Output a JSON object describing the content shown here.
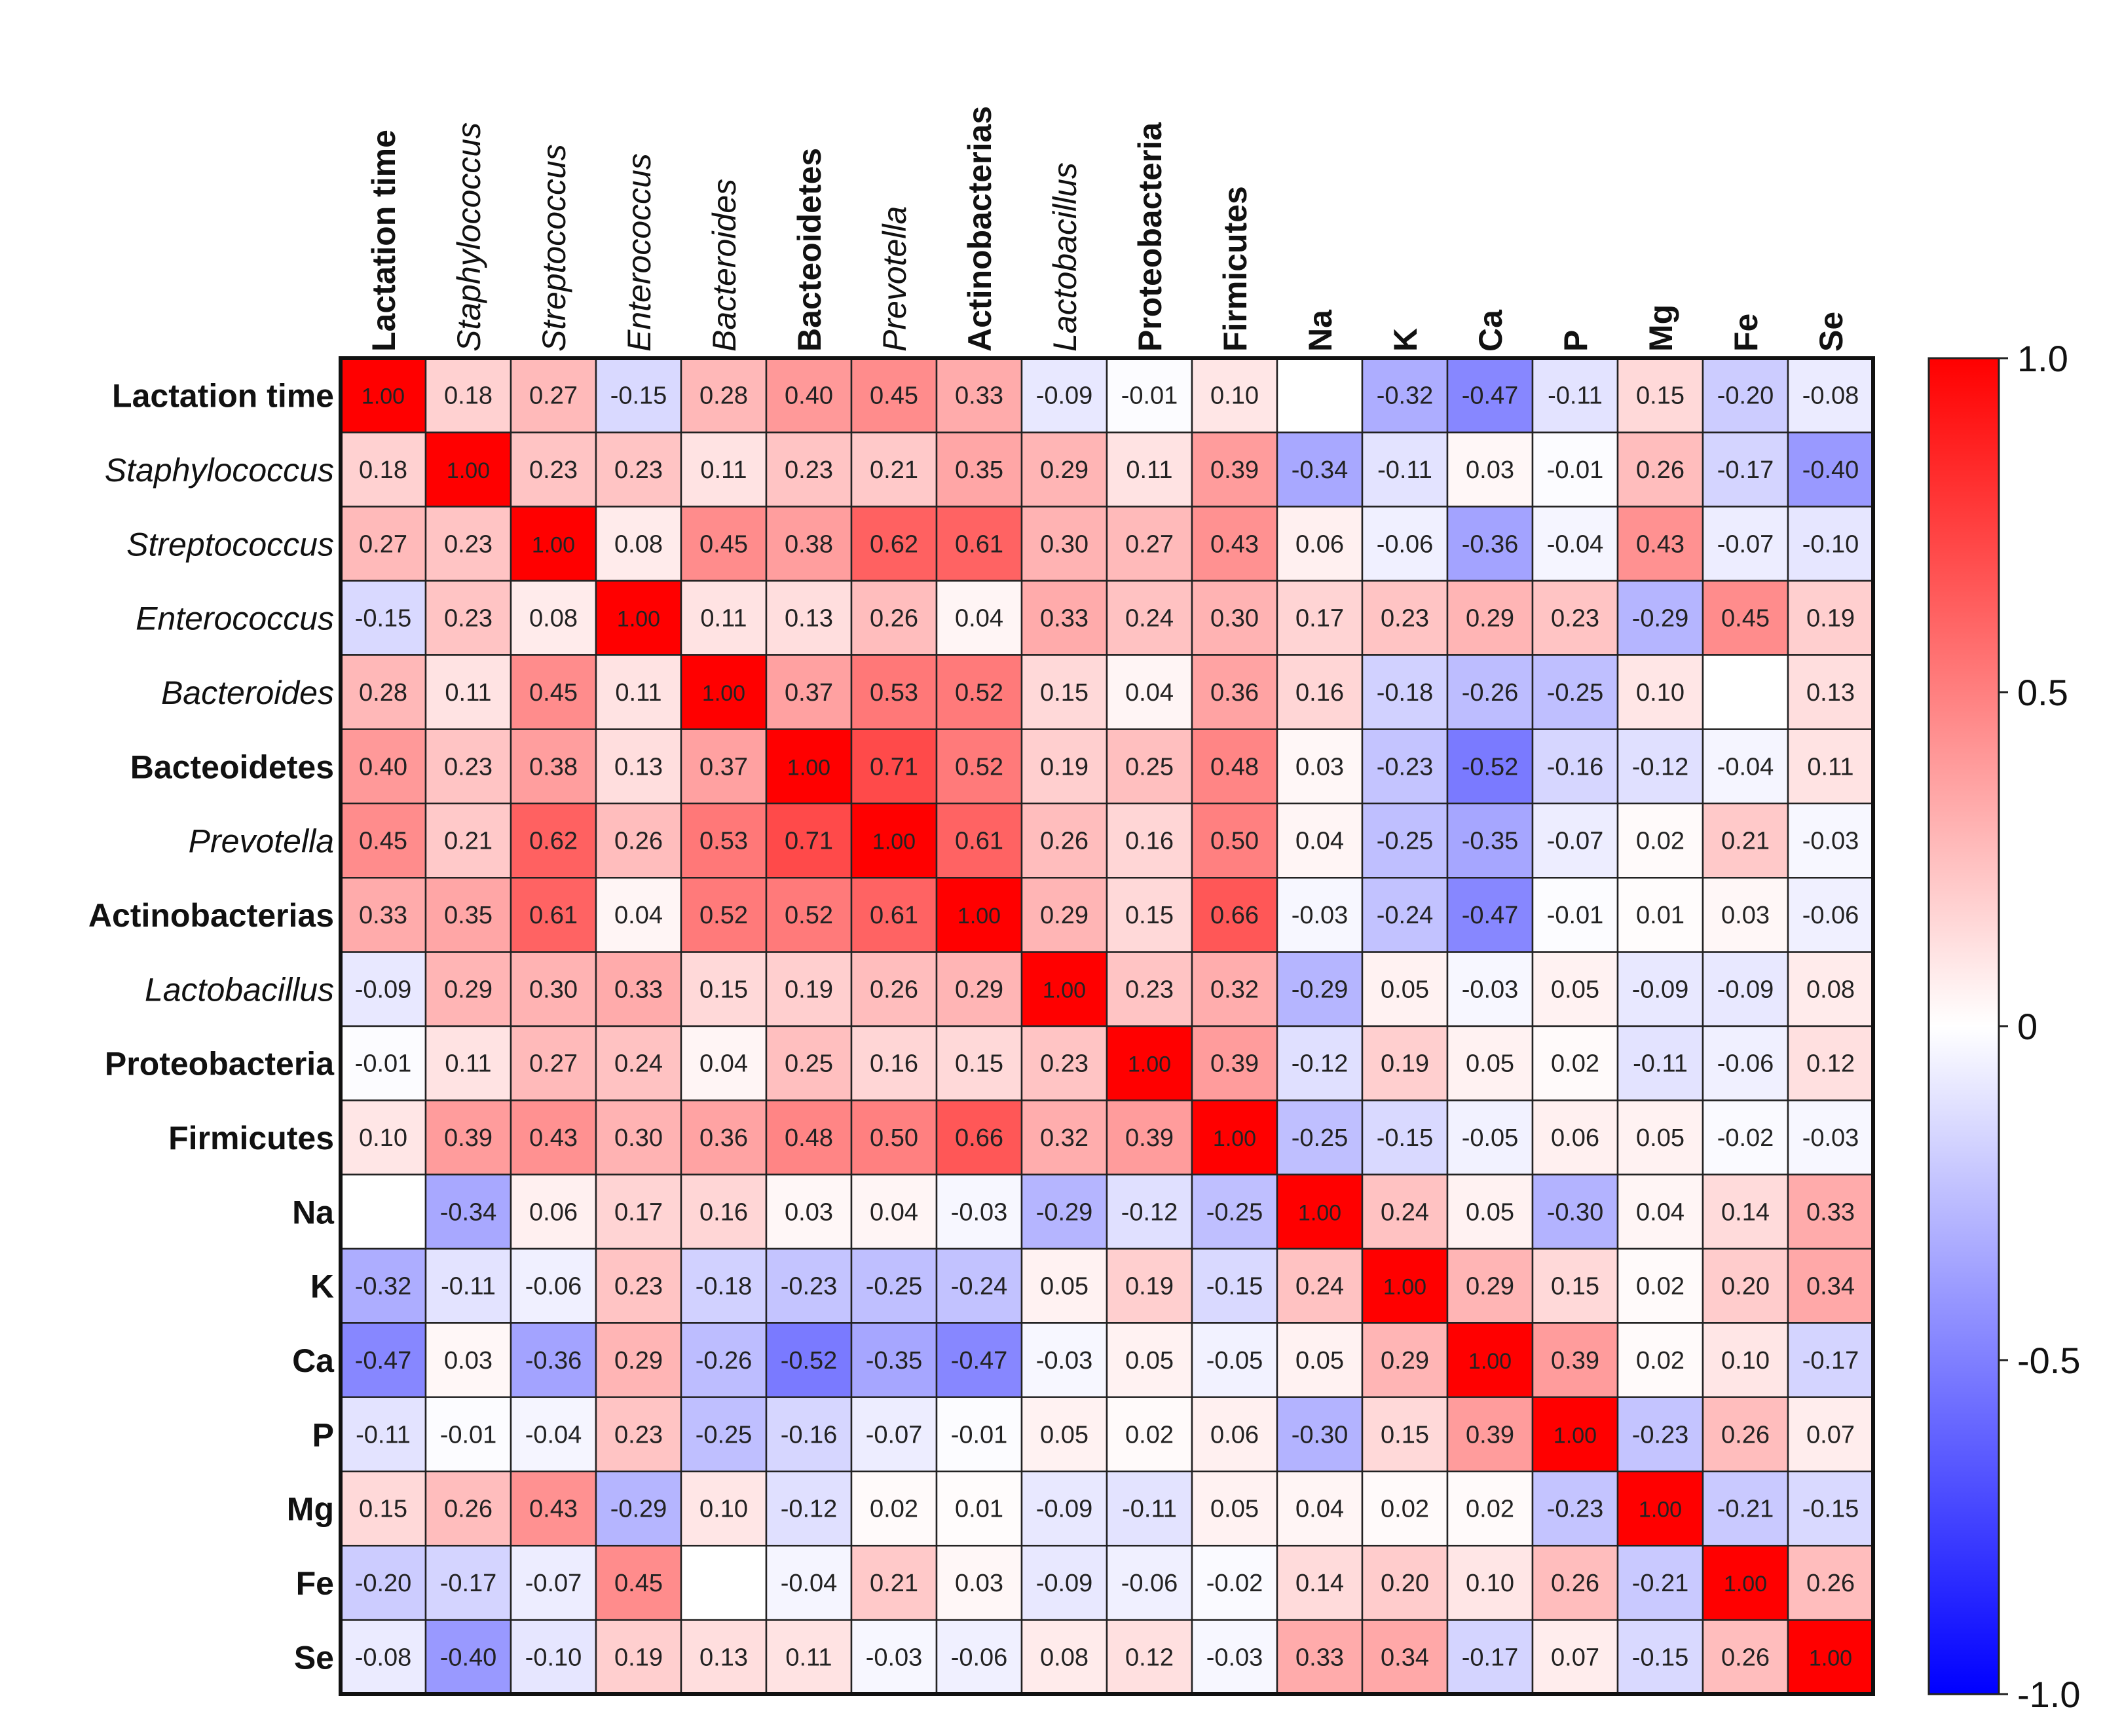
{
  "chart_data": {
    "type": "heatmap",
    "title": "",
    "labels": [
      {
        "text": "Lactation time",
        "style": "bold"
      },
      {
        "text": "Staphylococcus",
        "style": "italic"
      },
      {
        "text": "Streptococcus",
        "style": "italic"
      },
      {
        "text": "Enterococcus",
        "style": "italic"
      },
      {
        "text": "Bacteroides",
        "style": "italic"
      },
      {
        "text": "Bacteoidetes",
        "style": "bold"
      },
      {
        "text": "Prevotella",
        "style": "italic"
      },
      {
        "text": "Actinobacterias",
        "style": "bold"
      },
      {
        "text": "Lactobacillus",
        "style": "italic"
      },
      {
        "text": "Proteobacteria",
        "style": "bold"
      },
      {
        "text": "Firmicutes",
        "style": "bold"
      },
      {
        "text": "Na",
        "style": "bold"
      },
      {
        "text": "K",
        "style": "bold"
      },
      {
        "text": "Ca",
        "style": "bold"
      },
      {
        "text": "P",
        "style": "bold"
      },
      {
        "text": "Mg",
        "style": "bold"
      },
      {
        "text": "Fe",
        "style": "bold"
      },
      {
        "text": "Se",
        "style": "bold"
      }
    ],
    "matrix": [
      [
        1.0,
        0.18,
        0.27,
        -0.15,
        0.28,
        0.4,
        0.45,
        0.33,
        -0.09,
        -0.01,
        0.1,
        null,
        -0.32,
        -0.47,
        -0.11,
        0.15,
        -0.2,
        -0.08
      ],
      [
        0.18,
        1.0,
        0.23,
        0.23,
        0.11,
        0.23,
        0.21,
        0.35,
        0.29,
        0.11,
        0.39,
        -0.34,
        -0.11,
        0.03,
        -0.01,
        0.26,
        -0.17,
        -0.4
      ],
      [
        0.27,
        0.23,
        1.0,
        0.08,
        0.45,
        0.38,
        0.62,
        0.61,
        0.3,
        0.27,
        0.43,
        0.06,
        -0.06,
        -0.36,
        -0.04,
        0.43,
        -0.07,
        -0.1
      ],
      [
        -0.15,
        0.23,
        0.08,
        1.0,
        0.11,
        0.13,
        0.26,
        0.04,
        0.33,
        0.24,
        0.3,
        0.17,
        0.23,
        0.29,
        0.23,
        -0.29,
        0.45,
        0.19
      ],
      [
        0.28,
        0.11,
        0.45,
        0.11,
        1.0,
        0.37,
        0.53,
        0.52,
        0.15,
        0.04,
        0.36,
        0.16,
        -0.18,
        -0.26,
        -0.25,
        0.1,
        null,
        0.13
      ],
      [
        0.4,
        0.23,
        0.38,
        0.13,
        0.37,
        1.0,
        0.71,
        0.52,
        0.19,
        0.25,
        0.48,
        0.03,
        -0.23,
        -0.52,
        -0.16,
        -0.12,
        -0.04,
        0.11
      ],
      [
        0.45,
        0.21,
        0.62,
        0.26,
        0.53,
        0.71,
        1.0,
        0.61,
        0.26,
        0.16,
        0.5,
        0.04,
        -0.25,
        -0.35,
        -0.07,
        0.02,
        0.21,
        -0.03
      ],
      [
        0.33,
        0.35,
        0.61,
        0.04,
        0.52,
        0.52,
        0.61,
        1.0,
        0.29,
        0.15,
        0.66,
        -0.03,
        -0.24,
        -0.47,
        -0.01,
        0.01,
        0.03,
        -0.06
      ],
      [
        -0.09,
        0.29,
        0.3,
        0.33,
        0.15,
        0.19,
        0.26,
        0.29,
        1.0,
        0.23,
        0.32,
        -0.29,
        0.05,
        -0.03,
        0.05,
        -0.09,
        -0.09,
        0.08
      ],
      [
        -0.01,
        0.11,
        0.27,
        0.24,
        0.04,
        0.25,
        0.16,
        0.15,
        0.23,
        1.0,
        0.39,
        -0.12,
        0.19,
        0.05,
        0.02,
        -0.11,
        -0.06,
        0.12
      ],
      [
        0.1,
        0.39,
        0.43,
        0.3,
        0.36,
        0.48,
        0.5,
        0.66,
        0.32,
        0.39,
        1.0,
        -0.25,
        -0.15,
        -0.05,
        0.06,
        0.05,
        -0.02,
        -0.03
      ],
      [
        null,
        -0.34,
        0.06,
        0.17,
        0.16,
        0.03,
        0.04,
        -0.03,
        -0.29,
        -0.12,
        -0.25,
        1.0,
        0.24,
        0.05,
        -0.3,
        0.04,
        0.14,
        0.33
      ],
      [
        -0.32,
        -0.11,
        -0.06,
        0.23,
        -0.18,
        -0.23,
        -0.25,
        -0.24,
        0.05,
        0.19,
        -0.15,
        0.24,
        1.0,
        0.29,
        0.15,
        0.02,
        0.2,
        0.34
      ],
      [
        -0.47,
        0.03,
        -0.36,
        0.29,
        -0.26,
        -0.52,
        -0.35,
        -0.47,
        -0.03,
        0.05,
        -0.05,
        0.05,
        0.29,
        1.0,
        0.39,
        0.02,
        0.1,
        -0.17
      ],
      [
        -0.11,
        -0.01,
        -0.04,
        0.23,
        -0.25,
        -0.16,
        -0.07,
        -0.01,
        0.05,
        0.02,
        0.06,
        -0.3,
        0.15,
        0.39,
        1.0,
        -0.23,
        0.26,
        0.07
      ],
      [
        0.15,
        0.26,
        0.43,
        -0.29,
        0.1,
        -0.12,
        0.02,
        0.01,
        -0.09,
        -0.11,
        0.05,
        0.04,
        0.02,
        0.02,
        -0.23,
        1.0,
        -0.21,
        -0.15
      ],
      [
        -0.2,
        -0.17,
        -0.07,
        0.45,
        null,
        -0.04,
        0.21,
        0.03,
        -0.09,
        -0.06,
        -0.02,
        0.14,
        0.2,
        0.1,
        0.26,
        -0.21,
        1.0,
        0.26
      ],
      [
        -0.08,
        -0.4,
        -0.1,
        0.19,
        0.13,
        0.11,
        -0.03,
        -0.06,
        0.08,
        0.12,
        -0.03,
        0.33,
        0.34,
        -0.17,
        0.07,
        -0.15,
        0.26,
        1.0
      ]
    ],
    "colorbar": {
      "min": -1.0,
      "max": 1.0,
      "ticks": [
        {
          "value": 1.0,
          "label": "1.0"
        },
        {
          "value": 0.5,
          "label": "0.5"
        },
        {
          "value": 0,
          "label": "0"
        },
        {
          "value": -0.5,
          "label": "-0.5"
        },
        {
          "value": -1.0,
          "label": "-1.0"
        }
      ],
      "colors": {
        "low": "#0000ff",
        "mid": "#ffffff",
        "high": "#ff0000"
      }
    }
  }
}
